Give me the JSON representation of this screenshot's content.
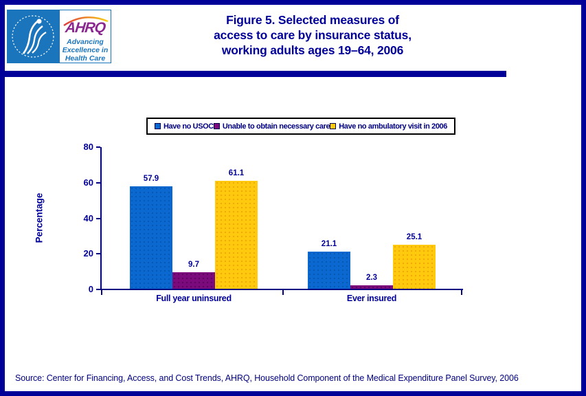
{
  "header": {
    "ahrq_acronym": "AHRQ",
    "ahrq_tagline_lines": [
      "Advancing",
      "Excellence in",
      "Health Care"
    ],
    "title_lines": [
      "Figure 5. Selected measures of",
      "access to care by insurance status,",
      "working adults ages 19–64, 2006"
    ]
  },
  "chart_data": {
    "type": "bar",
    "categories": [
      "Full year uninsured",
      "Ever insured"
    ],
    "series": [
      {
        "name": "Have no USOC",
        "color": "#0B68D0",
        "values": [
          57.9,
          21.1
        ]
      },
      {
        "name": "Unable to obtain necessary care",
        "color": "#7D0A7D",
        "values": [
          9.7,
          2.3
        ]
      },
      {
        "name": "Have no ambulatory visit in 2006",
        "color": "#FFC90E",
        "values": [
          61.1,
          25.1
        ]
      }
    ],
    "title": "",
    "xlabel": "",
    "ylabel": "Percentage",
    "ylim": [
      0,
      80
    ],
    "yticks": [
      0,
      20,
      40,
      60,
      80
    ],
    "grid": false,
    "legend_position": "top",
    "data_labels": true
  },
  "source": "Source: Center for Financing, Access, and Cost Trends, AHRQ, Household Component of the Medical Expenditure Panel Survey, 2006",
  "colors": {
    "frame_and_title": "#000099",
    "axis": "#000080",
    "hhs_blue": "#1B75BC",
    "ahrq_purple": "#8A2890",
    "bar_blue": "#0B68D0",
    "bar_purple": "#7D0A7D",
    "bar_yellow": "#FFC90E"
  }
}
